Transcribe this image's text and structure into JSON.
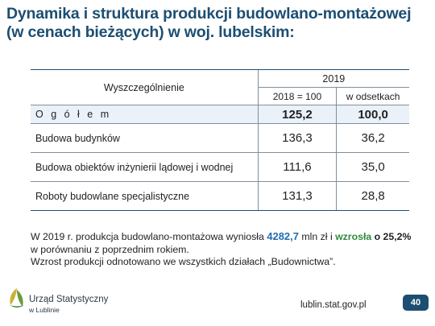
{
  "title": {
    "line1": "Dynamika i struktura produkcji budowlano-montażowej",
    "line2": "(w cenach bieżących) w woj. lubelskim:"
  },
  "table": {
    "header_label": "Wyszczególnienie",
    "year": "2019",
    "columns": [
      "2018 = 100",
      "w odsetkach"
    ],
    "rows": [
      {
        "label": "O g ó ł e m",
        "values": [
          "125,2",
          "100,0"
        ]
      },
      {
        "label": "Budowa budynków",
        "values": [
          "136,3",
          "36,2"
        ]
      },
      {
        "label": "Budowa obiektów inżynierii lądowej i wodnej",
        "values": [
          "111,6",
          "35,0"
        ]
      },
      {
        "label": "Roboty budowlane specjalistyczne",
        "values": [
          "131,3",
          "28,8"
        ]
      }
    ]
  },
  "note": {
    "p1_a": "W 2019 r. produkcja budowlano-montażowa wyniosła ",
    "p1_value": "4282,7",
    "p1_b": " mln zł i ",
    "p1_growth": "wzrosła",
    "p1_c": " o 25,2%",
    "p2": "w porównaniu z poprzednim rokiem.",
    "p3": "Wzrost produkcji odnotowano we wszystkich działach „Budownictwa”."
  },
  "footer": {
    "logo_line1": "Urząd Statystyczny",
    "logo_line2": "w Lublinie",
    "url": "lublin.stat.gov.pl",
    "page_number": "40"
  },
  "colors": {
    "title": "#1d4e72",
    "total_row_bg": "#eaf1f8",
    "value_highlight": "#1f6fb2",
    "growth_highlight": "#2f8a3c",
    "page_badge": "#1d4e72"
  },
  "icons": [
    "logo-mark-icon"
  ]
}
